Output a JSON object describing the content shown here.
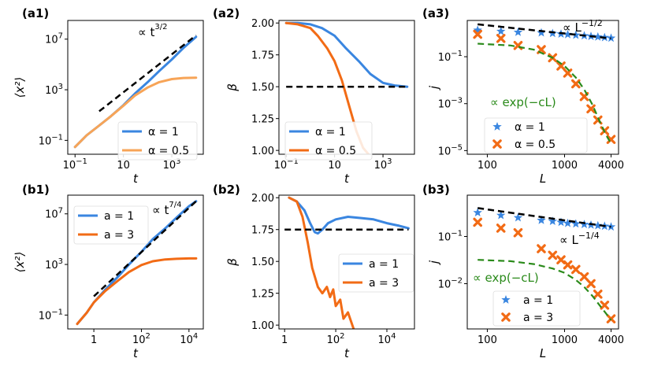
{
  "colors": {
    "blue": "#3a86e0",
    "orange": "#f26b15",
    "light_orange": "#f7a457",
    "green": "#2a8a1a",
    "black": "#000000"
  },
  "chart_data": [
    {
      "id": "a1",
      "label": "(a1)",
      "type": "line",
      "xscale": "log",
      "yscale": "log",
      "xlabel": "t",
      "ylabel": "⟨x²⟩",
      "xlim": [
        0.05,
        20000
      ],
      "ylim": [
        0.008,
        300000000
      ],
      "xticks": [
        {
          "v": 0.1,
          "b": "10",
          "e": "−1"
        },
        {
          "v": 10,
          "b": "10",
          "e": ""
        },
        {
          "v": 1000,
          "b": "10",
          "e": "3"
        }
      ],
      "yticks": [
        {
          "v": 0.1,
          "b": "10",
          "e": "−1"
        },
        {
          "v": 1000,
          "b": "10",
          "e": "3"
        },
        {
          "v": 10000000,
          "b": "10",
          "e": "7"
        }
      ],
      "annotation": {
        "prefix": "∝ t",
        "sup_num": "3",
        "sup_den": "2"
      },
      "legend": [
        {
          "text": "α = 1",
          "color": "blue"
        },
        {
          "text": "α = 0.5",
          "color": "light_orange"
        }
      ],
      "series": [
        {
          "name": "α = 1",
          "color": "blue",
          "style": "solid",
          "width": 3,
          "x": [
            0.1,
            0.3,
            1,
            3,
            10,
            30,
            100,
            300,
            1000,
            3000,
            10000
          ],
          "y": [
            0.03,
            0.25,
            1.5,
            8,
            60,
            500,
            4000,
            30000,
            250000,
            2000000,
            15000000
          ]
        },
        {
          "name": "α = 0.5",
          "color": "light_orange",
          "style": "solid",
          "width": 3,
          "x": [
            0.1,
            0.3,
            1,
            3,
            10,
            30,
            100,
            300,
            1000,
            3000,
            10000
          ],
          "y": [
            0.03,
            0.25,
            1.5,
            8,
            55,
            350,
            1500,
            4000,
            7000,
            8500,
            9000
          ]
        },
        {
          "name": "t^(3/2) guide",
          "color": "black",
          "style": "dashed",
          "width": 2.5,
          "x": [
            1,
            10000
          ],
          "y": [
            20,
            20000000
          ]
        }
      ]
    },
    {
      "id": "a2",
      "label": "(a2)",
      "type": "line",
      "xscale": "log",
      "yscale": "linear",
      "xlabel": "t",
      "ylabel": "β",
      "xlim": [
        0.05,
        20000
      ],
      "ylim": [
        0.97,
        2.02
      ],
      "xticks": [
        {
          "v": 0.1,
          "b": "10",
          "e": "−1"
        },
        {
          "v": 10,
          "b": "10",
          "e": ""
        },
        {
          "v": 1000,
          "b": "10",
          "e": "3"
        }
      ],
      "yticks": [
        {
          "v": 1.0,
          "t": "1.00"
        },
        {
          "v": 1.25,
          "t": "1.25"
        },
        {
          "v": 1.5,
          "t": "1.50"
        },
        {
          "v": 1.75,
          "t": "1.75"
        },
        {
          "v": 2.0,
          "t": "2.00"
        }
      ],
      "legend": [
        {
          "text": "α = 1",
          "color": "blue"
        },
        {
          "text": "α = 0.5",
          "color": "orange"
        }
      ],
      "series": [
        {
          "name": "α = 1",
          "color": "blue",
          "style": "solid",
          "width": 3,
          "x": [
            0.1,
            0.3,
            1,
            3,
            10,
            30,
            100,
            300,
            1000,
            3000,
            10000
          ],
          "y": [
            2.0,
            2.0,
            1.99,
            1.96,
            1.9,
            1.8,
            1.7,
            1.6,
            1.53,
            1.51,
            1.5
          ]
        },
        {
          "name": "α = 0.5",
          "color": "orange",
          "style": "solid",
          "width": 3,
          "x": [
            0.1,
            0.3,
            1,
            2,
            5,
            10,
            20,
            40,
            80,
            150,
            250
          ],
          "y": [
            2.0,
            1.99,
            1.96,
            1.9,
            1.8,
            1.7,
            1.55,
            1.35,
            1.15,
            1.02,
            0.97
          ]
        },
        {
          "name": "β = 1.5 guide",
          "color": "black",
          "style": "dashed",
          "width": 2.5,
          "x": [
            0.1,
            10000
          ],
          "y": [
            1.5,
            1.5
          ]
        }
      ]
    },
    {
      "id": "a3",
      "label": "(a3)",
      "type": "scatter",
      "xscale": "log",
      "yscale": "log",
      "xlabel": "L",
      "ylabel": "j",
      "xlim": [
        55,
        5000
      ],
      "ylim": [
        7e-06,
        3.5
      ],
      "xticks": [
        {
          "v": 100,
          "t": "100"
        },
        {
          "v": 1000,
          "t": "1000"
        },
        {
          "v": 4000,
          "t": "4000"
        }
      ],
      "yticks": [
        {
          "v": 0.1,
          "b": "10",
          "e": "−1"
        },
        {
          "v": 0.001,
          "b": "10",
          "e": "−3"
        },
        {
          "v": 1e-05,
          "b": "10",
          "e": "−5"
        }
      ],
      "annotation": {
        "text": "∝ L",
        "sup": "−1/2"
      },
      "annotation2": {
        "text": "∝ exp(−cL)"
      },
      "legend": [
        {
          "text": "α = 1",
          "color": "blue",
          "marker": "star"
        },
        {
          "text": "α = 0.5",
          "color": "orange",
          "marker": "x"
        }
      ],
      "series": [
        {
          "name": "α = 1",
          "color": "blue",
          "marker": "star",
          "x": [
            75,
            150,
            250,
            500,
            700,
            900,
            1100,
            1400,
            1800,
            2200,
            2700,
            3300,
            4000
          ],
          "y": [
            1.35,
            1.2,
            1.1,
            1.05,
            0.98,
            0.93,
            0.88,
            0.83,
            0.78,
            0.74,
            0.7,
            0.66,
            0.62
          ]
        },
        {
          "name": "α = 0.5",
          "color": "orange",
          "marker": "x",
          "x": [
            75,
            150,
            250,
            500,
            700,
            900,
            1100,
            1400,
            1800,
            2200,
            2700,
            3300,
            4000
          ],
          "y": [
            0.9,
            0.6,
            0.3,
            0.2,
            0.09,
            0.04,
            0.02,
            0.007,
            0.002,
            0.0006,
            0.0002,
            7e-05,
            3e-05
          ]
        },
        {
          "name": "L^(-1/2) guide",
          "color": "black",
          "style": "dashed",
          "width": 2.5,
          "x": [
            75,
            4000
          ],
          "y": [
            2.4,
            0.6
          ]
        },
        {
          "name": "exp(-cL) guide",
          "color": "green",
          "style": "dashed",
          "width": 2.2,
          "x": [
            75,
            200,
            400,
            700,
            1000,
            1400,
            1800,
            2300,
            2800,
            3400,
            4000
          ],
          "y": [
            0.36,
            0.3,
            0.2,
            0.09,
            0.04,
            0.013,
            0.004,
            0.0009,
            0.0002,
            5e-05,
            2e-05
          ]
        }
      ]
    },
    {
      "id": "b1",
      "label": "(b1)",
      "type": "line",
      "xscale": "log",
      "yscale": "log",
      "xlabel": "t",
      "ylabel": "⟨x²⟩",
      "xlim": [
        0.08,
        40000
      ],
      "ylim": [
        0.008,
        300000000
      ],
      "xticks": [
        {
          "v": 1,
          "t": "1"
        },
        {
          "v": 100,
          "b": "10",
          "e": "2"
        },
        {
          "v": 10000,
          "b": "10",
          "e": "4"
        }
      ],
      "yticks": [
        {
          "v": 0.1,
          "b": "10",
          "e": "−1"
        },
        {
          "v": 1000,
          "b": "10",
          "e": "3"
        },
        {
          "v": 10000000,
          "b": "10",
          "e": "7"
        }
      ],
      "annotation": {
        "prefix": "∝ t",
        "sup_num": "7",
        "sup_den": "4"
      },
      "legend": [
        {
          "text": "a = 1",
          "color": "blue"
        },
        {
          "text": "a = 3",
          "color": "orange"
        }
      ],
      "series": [
        {
          "name": "a = 1",
          "color": "blue",
          "style": "solid",
          "width": 3,
          "x": [
            0.2,
            0.5,
            1,
            3,
            10,
            30,
            100,
            300,
            1000,
            3000,
            10000,
            20000
          ],
          "y": [
            0.02,
            0.15,
            1,
            10,
            100,
            1000,
            10000,
            100000,
            700000,
            5000000,
            40000000,
            100000000
          ]
        },
        {
          "name": "a = 3",
          "color": "orange",
          "style": "solid",
          "width": 3,
          "x": [
            0.2,
            0.5,
            1,
            3,
            10,
            30,
            100,
            300,
            1000,
            3000,
            10000,
            20000
          ],
          "y": [
            0.02,
            0.15,
            1,
            8,
            50,
            250,
            900,
            1800,
            2500,
            2800,
            3000,
            3000
          ]
        },
        {
          "name": "t^(7/4) guide",
          "color": "black",
          "style": "dashed",
          "width": 2.5,
          "x": [
            1,
            20000
          ],
          "y": [
            3,
            100000000
          ]
        }
      ]
    },
    {
      "id": "b2",
      "label": "(b2)",
      "type": "line",
      "xscale": "log",
      "yscale": "linear",
      "xlabel": "t",
      "ylabel": "β",
      "xlim": [
        0.6,
        120000
      ],
      "ylim": [
        0.97,
        2.02
      ],
      "xticks": [
        {
          "v": 1,
          "t": "1"
        },
        {
          "v": 100,
          "b": "10",
          "e": "2"
        },
        {
          "v": 10000,
          "b": "10",
          "e": "4"
        }
      ],
      "yticks": [
        {
          "v": 1.0,
          "t": "1.00"
        },
        {
          "v": 1.25,
          "t": "1.25"
        },
        {
          "v": 1.5,
          "t": "1.50"
        },
        {
          "v": 1.75,
          "t": "1.75"
        },
        {
          "v": 2.0,
          "t": "2.00"
        }
      ],
      "legend": [
        {
          "text": "a = 1",
          "color": "blue"
        },
        {
          "text": "a = 3",
          "color": "orange"
        }
      ],
      "series": [
        {
          "name": "a = 1",
          "color": "blue",
          "style": "solid",
          "width": 3,
          "x": [
            1.5,
            3,
            6,
            10,
            15,
            20,
            30,
            50,
            100,
            300,
            1000,
            3000,
            10000,
            30000,
            70000
          ],
          "y": [
            2.0,
            1.97,
            1.9,
            1.8,
            1.73,
            1.72,
            1.75,
            1.8,
            1.83,
            1.85,
            1.84,
            1.83,
            1.8,
            1.78,
            1.76
          ]
        },
        {
          "name": "a = 3",
          "color": "orange",
          "style": "solid",
          "width": 3,
          "x": [
            1.5,
            3,
            5,
            8,
            12,
            20,
            30,
            45,
            60,
            80,
            100,
            150,
            200,
            300,
            500
          ],
          "y": [
            2.0,
            1.97,
            1.85,
            1.65,
            1.45,
            1.3,
            1.25,
            1.3,
            1.22,
            1.28,
            1.15,
            1.2,
            1.05,
            1.1,
            0.97
          ]
        },
        {
          "name": "β = 1.75 guide",
          "color": "black",
          "style": "dashed",
          "width": 2.5,
          "x": [
            1,
            70000
          ],
          "y": [
            1.75,
            1.75
          ]
        }
      ]
    },
    {
      "id": "b3",
      "label": "(b3)",
      "type": "scatter",
      "xscale": "log",
      "yscale": "log",
      "xlabel": "L",
      "ylabel": "j",
      "xlim": [
        55,
        5000
      ],
      "ylim": [
        0.0011,
        0.75
      ],
      "xticks": [
        {
          "v": 100,
          "t": "100"
        },
        {
          "v": 1000,
          "t": "1000"
        },
        {
          "v": 4000,
          "t": "4000"
        }
      ],
      "yticks": [
        {
          "v": 0.1,
          "b": "10",
          "e": "−1"
        },
        {
          "v": 0.01,
          "b": "10",
          "e": "−2"
        }
      ],
      "annotation": {
        "text": "∝ L",
        "sup": "−1/4"
      },
      "annotation2": {
        "text": "∝ exp(−cL)"
      },
      "legend": [
        {
          "text": "a = 1",
          "color": "blue",
          "marker": "star"
        },
        {
          "text": "a = 3",
          "color": "orange",
          "marker": "x"
        }
      ],
      "series": [
        {
          "name": "a = 1",
          "color": "blue",
          "marker": "star",
          "x": [
            75,
            150,
            250,
            500,
            700,
            900,
            1100,
            1400,
            1800,
            2200,
            2700,
            3300,
            4000
          ],
          "y": [
            0.32,
            0.28,
            0.25,
            0.22,
            0.21,
            0.2,
            0.19,
            0.185,
            0.18,
            0.175,
            0.17,
            0.165,
            0.16
          ]
        },
        {
          "name": "a = 3",
          "color": "orange",
          "marker": "x",
          "x": [
            75,
            150,
            250,
            500,
            700,
            900,
            1100,
            1400,
            1800,
            2200,
            2700,
            3300,
            4000
          ],
          "y": [
            0.2,
            0.15,
            0.12,
            0.055,
            0.04,
            0.032,
            0.025,
            0.02,
            0.014,
            0.01,
            0.006,
            0.0035,
            0.0018
          ]
        },
        {
          "name": "L^(-1/4) guide",
          "color": "black",
          "style": "dashed",
          "width": 2.5,
          "x": [
            75,
            4000
          ],
          "y": [
            0.4,
            0.16
          ]
        },
        {
          "name": "exp(-cL) guide",
          "color": "green",
          "style": "dashed",
          "width": 2.2,
          "x": [
            75,
            200,
            400,
            700,
            1000,
            1400,
            1800,
            2300,
            2800,
            3400,
            4000
          ],
          "y": [
            0.032,
            0.03,
            0.026,
            0.021,
            0.017,
            0.012,
            0.0085,
            0.0055,
            0.0036,
            0.0024,
            0.0017
          ]
        }
      ]
    }
  ]
}
